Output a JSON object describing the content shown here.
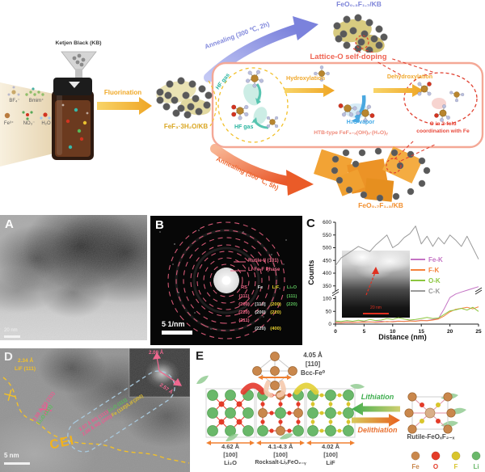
{
  "scheme": {
    "ketjen": "Ketjen Black (KB)",
    "precursors": [
      "BF₄⁻",
      "Bmim⁺",
      "Fe³⁺",
      "NO₃⁻",
      "H₂O"
    ],
    "fluorination": "Fluorination",
    "fef3": "FeF₃·3H₂O/KB",
    "anneal_top": "Annealing (300 ℃, 2h)",
    "product_top": "FeO₀.₃F₁.₇/KB",
    "anneal_bottom": "Annealing (300 ℃, 5h)",
    "product_bottom": "FeO₀.₇F₁.₃/KB",
    "box_title": "Lattice-O self-doping",
    "hf_gas_1": "HF gas",
    "hf_gas_2": "HF  gas",
    "hydroxylation": "Hydroxylation",
    "dehydroxylation": "Dehydroxylation",
    "h2o_vapor": "H₂O vapor",
    "htb": "HTB-type FeF₃₋ₓ(OH)ₓ·(H₂O)ᵧ",
    "o_coord_1": "O in 3-fold",
    "o_coord_2": "coordination with Fe"
  },
  "panelA": {
    "label": "A",
    "scalebar": "20 nm"
  },
  "panelB": {
    "label": "B",
    "scalebar": "5 1/nm",
    "ring_label_1": "Rutile-II (101)",
    "ring_label_2": "Li-Fe-F Phase",
    "index_table": {
      "columns": [
        {
          "header": "RS",
          "color": "#f06888",
          "cells": [
            "(111)",
            "(200)",
            "(220)",
            "(211)",
            ""
          ]
        },
        {
          "header": "Fe",
          "color": "#dcdcdc",
          "cells": [
            "",
            "[110]",
            "(200)",
            "",
            "(220)"
          ]
        },
        {
          "header": "LiF",
          "color": "#e6cf2e",
          "cells": [
            "",
            "(200)",
            "(220)",
            "",
            "(400)"
          ]
        },
        {
          "header": "Li₂O",
          "color": "#5bbf5b",
          "cells": [
            "(111)",
            "(220)",
            "",
            "",
            ""
          ]
        }
      ]
    }
  },
  "panelC": {
    "label": "C",
    "inset_scalebar": "20 nm"
  },
  "chart_data": {
    "type": "line",
    "title": "",
    "xlabel": "Distance (nm)",
    "ylabel": "Counts",
    "xlim": [
      0,
      25
    ],
    "ylim": [
      0,
      600
    ],
    "x_ticks": [
      0,
      5,
      10,
      15,
      20,
      25
    ],
    "y_ticks": [
      0,
      50,
      100,
      350,
      400,
      450,
      500,
      550,
      600
    ],
    "y_break_between": [
      100,
      350
    ],
    "grid": false,
    "legend_position": "middle-right",
    "x": [
      0,
      1,
      2,
      3,
      4,
      5,
      6,
      7,
      8,
      9,
      10,
      11,
      12,
      13,
      14,
      15,
      16,
      17,
      18,
      19,
      20,
      21,
      22,
      23,
      24,
      25
    ],
    "series": [
      {
        "name": "Fe-K",
        "color": "#c473c4",
        "values": [
          8,
          6,
          9,
          7,
          8,
          10,
          8,
          9,
          11,
          9,
          10,
          12,
          10,
          13,
          12,
          15,
          14,
          18,
          22,
          60,
          120,
          190,
          230,
          265,
          300,
          335
        ]
      },
      {
        "name": "F-K",
        "color": "#f5823c",
        "values": [
          6,
          5,
          7,
          6,
          8,
          7,
          9,
          7,
          8,
          10,
          9,
          11,
          10,
          12,
          11,
          14,
          13,
          16,
          20,
          32,
          48,
          58,
          62,
          66,
          60,
          68
        ]
      },
      {
        "name": "O-K",
        "color": "#8cc63f",
        "values": [
          12,
          10,
          14,
          11,
          15,
          12,
          18,
          14,
          16,
          22,
          18,
          25,
          20,
          16,
          18,
          22,
          26,
          22,
          24,
          38,
          52,
          56,
          62,
          55,
          66,
          50
        ]
      },
      {
        "name": "C-K",
        "color": "#9a9a9a",
        "values": [
          430,
          460,
          475,
          490,
          505,
          495,
          485,
          510,
          530,
          550,
          500,
          515,
          540,
          555,
          585,
          515,
          545,
          505,
          540,
          515,
          550,
          530,
          505,
          545,
          500,
          455
        ]
      }
    ]
  },
  "panelD": {
    "label": "D",
    "scalebar": "5 nm",
    "d1": "2.34 Å",
    "d1_plane": "LiF (111)",
    "d2": "2.59 Å RS (111)",
    "d2_plane": "Li₂O (111)",
    "band1_a": "2.57 Å RS (111)/",
    "band1_b": "Li₂O (111)",
    "band2_a": "2.08 Å RS (200)/",
    "band2_b": "Fe (110)/LiF(200)",
    "cei": "CEI",
    "fft_d1": "2.08 Å",
    "fft_d2": "2.57 Å"
  },
  "panelE": {
    "label": "E",
    "bcc_d": "4.05 Å",
    "bcc_dir": "[110]",
    "bcc_name": "Bcc-Fe⁰",
    "li2o_d": "4.62 Å",
    "li2o_dir": "[100]",
    "li2o_name": "Li₂O",
    "rs_d": "4.1-4.3 Å",
    "rs_dir": "[100]",
    "rs_name": "Rocksalt-LiₓFeO₂₋ᵧ",
    "lif_d": "4.02 Å",
    "lif_dir": "[100]",
    "lif_name": "LiF",
    "lithiation": "Lithiation",
    "delithiation": "Delithiation",
    "rutile": "Rutile-FeOₓF₂₋ₓ",
    "legend": [
      {
        "name": "Fe",
        "color": "#c9874c"
      },
      {
        "name": "O",
        "color": "#e43b28"
      },
      {
        "name": "F",
        "color": "#d9c52c"
      },
      {
        "name": "Li",
        "color": "#6ab86a"
      }
    ]
  }
}
